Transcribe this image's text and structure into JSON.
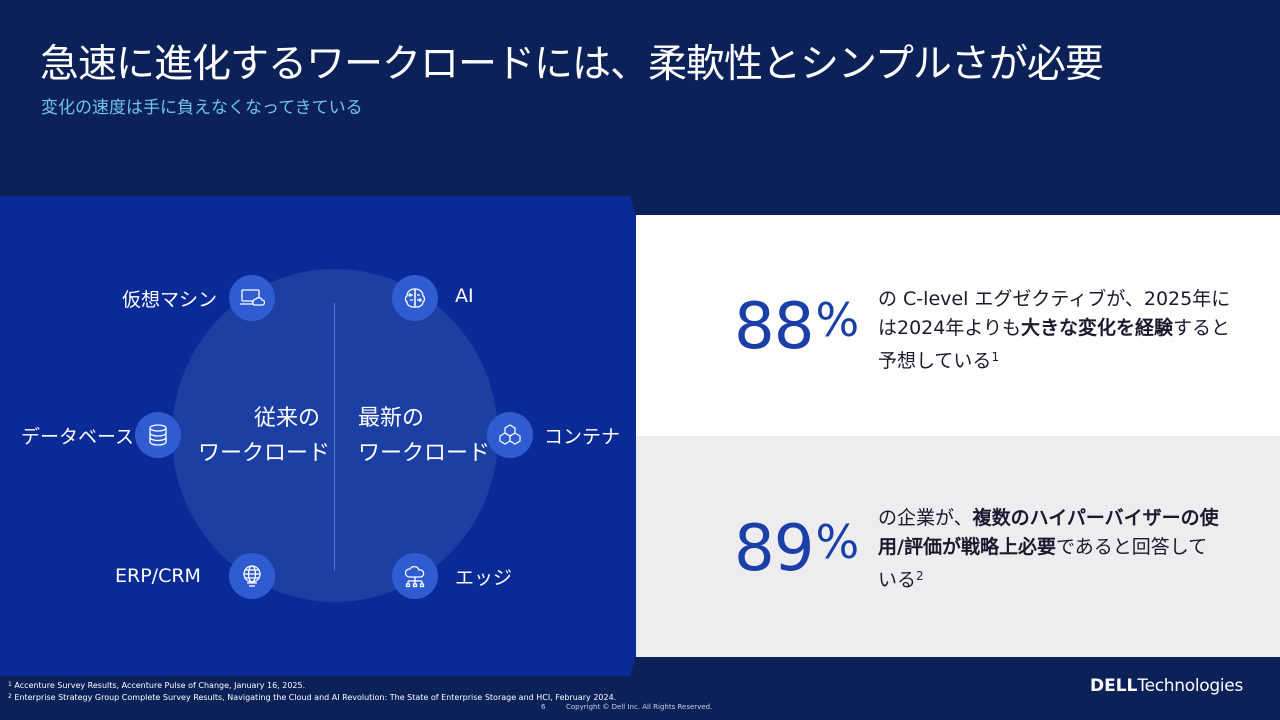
{
  "header": {
    "title": "急速に進化するワークロードには、柔軟性とシンプルさが必要",
    "subtitle": "変化の速度は手に負えなくなってきている"
  },
  "workloads": {
    "traditional": {
      "line1": "従来の",
      "line2": "ワークロード"
    },
    "modern": {
      "line1": "最新の",
      "line2": "ワークロード"
    },
    "nodes": {
      "vm": {
        "label": "仮想マシン",
        "icon": "laptop-cloud-icon"
      },
      "database": {
        "label": "データベース",
        "icon": "database-icon"
      },
      "erp": {
        "label": "ERP/CRM",
        "icon": "globe-monitor-icon"
      },
      "ai": {
        "label": "AI",
        "icon": "brain-circuit-icon"
      },
      "container": {
        "label": "コンテナ",
        "icon": "cubes-icon"
      },
      "edge": {
        "label": "エッジ",
        "icon": "cloud-network-icon"
      }
    }
  },
  "chart_data": {
    "type": "table",
    "stats": [
      {
        "value": 88,
        "unit": "%",
        "text_parts": [
          "の C-level エグゼクティブが、2025年には2024年よりも",
          "大きな変化を経験",
          "すると予想している",
          "1"
        ]
      },
      {
        "value": 89,
        "unit": "%",
        "text_parts": [
          "の企業が、",
          "複数のハイパーバイザーの使用/評価が戦略上必要",
          "であると回答している",
          "2"
        ]
      }
    ]
  },
  "footer": {
    "footnote1_num": "1",
    "footnote1": "Accenture Survey Results, Accenture Pulse of Change, January 16, 2025.",
    "footnote2_num": "2",
    "footnote2": "Enterprise Strategy Group Complete Survey Results, Navigating the Cloud and AI Revolution: The State of Enterprise Storage and HCI, February 2024.",
    "page_number": "6",
    "copyright": "Copyright © Dell Inc. All Rights Reserved.",
    "logo_dell": "DELL",
    "logo_tech": "Technologies"
  },
  "colors": {
    "background": "#0c2158",
    "panel": "#0a2a96",
    "circle": "#1c3fa3",
    "node": "#2f5dd1",
    "accent_blue": "#1b3fa8",
    "subtitle": "#6fc3ee"
  }
}
